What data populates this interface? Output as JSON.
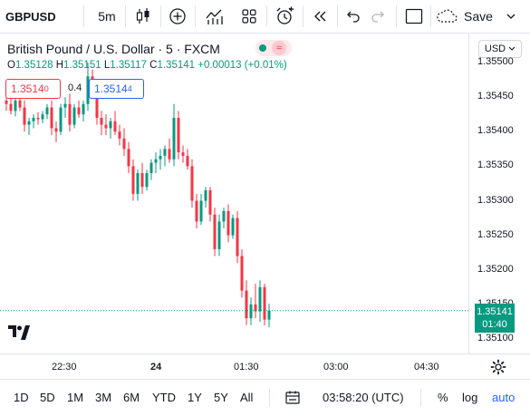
{
  "toolbar": {
    "symbol": "GBPUSD",
    "interval": "5m",
    "save_label": "Save",
    "icons": [
      "candles-icon",
      "plus-circle-icon",
      "indicators-icon",
      "layout-icon",
      "alert-icon",
      "replay-icon",
      "undo-icon",
      "redo-icon",
      "fullscreen-icon",
      "cloud-save-icon",
      "chevron-down-icon"
    ]
  },
  "legend": {
    "title": "British Pound / U.S. Dollar · 5 · FXCM",
    "o_label": "O",
    "o_value": "1.35128",
    "h_label": "H",
    "h_value": "1.35151",
    "l_label": "L",
    "l_value": "1.35117",
    "c_label": "C",
    "c_value": "1.35141",
    "change": "+0.00013 (+0.01%)",
    "sell_price": "1.3514",
    "sell_pip": "0",
    "spread": "0.4",
    "buy_price": "1.3514",
    "buy_pip": "4"
  },
  "price_axis": {
    "currency": "USD",
    "labels": [
      "1.35500",
      "1.35450",
      "1.35400",
      "1.35350",
      "1.35300",
      "1.35250",
      "1.35200",
      "1.35150",
      "1.35100"
    ],
    "last_price": "1.35141",
    "countdown": "01:40"
  },
  "time_axis": {
    "labels": [
      "22:30",
      "24",
      "01:30",
      "03:00",
      "04:30"
    ]
  },
  "bottombar": {
    "ranges": [
      "1D",
      "5D",
      "1M",
      "3M",
      "6M",
      "YTD",
      "1Y",
      "5Y",
      "All"
    ],
    "clock": "03:58:20 (UTC)",
    "percent": "%",
    "log": "log",
    "auto": "auto"
  },
  "colors": {
    "up": "#089981",
    "down": "#f23645",
    "accent": "#2962ff"
  },
  "chart_data": {
    "type": "candlestick",
    "symbol": "GBPUSD",
    "interval": "5m",
    "ylim": [
      1.3508,
      1.3552
    ],
    "candles": [
      [
        1.35445,
        1.35455,
        1.3543,
        1.3544
      ],
      [
        1.3544,
        1.3545,
        1.35425,
        1.3543
      ],
      [
        1.3543,
        1.35448,
        1.35422,
        1.35445
      ],
      [
        1.35445,
        1.3546,
        1.3543,
        1.35435
      ],
      [
        1.35435,
        1.35445,
        1.354,
        1.3541
      ],
      [
        1.3541,
        1.3542,
        1.35395,
        1.35415
      ],
      [
        1.35415,
        1.35425,
        1.35405,
        1.3542
      ],
      [
        1.3542,
        1.35428,
        1.3541,
        1.35418
      ],
      [
        1.35418,
        1.3543,
        1.35412,
        1.35425
      ],
      [
        1.35425,
        1.3544,
        1.35418,
        1.35435
      ],
      [
        1.35435,
        1.35445,
        1.35395,
        1.35405
      ],
      [
        1.35405,
        1.35415,
        1.35385,
        1.354
      ],
      [
        1.354,
        1.3544,
        1.35395,
        1.35435
      ],
      [
        1.35435,
        1.3545,
        1.3542,
        1.3544
      ],
      [
        1.3544,
        1.35455,
        1.354,
        1.3541
      ],
      [
        1.3541,
        1.3544,
        1.35405,
        1.35435
      ],
      [
        1.35435,
        1.35445,
        1.3542,
        1.35425
      ],
      [
        1.35425,
        1.35445,
        1.35415,
        1.3544
      ],
      [
        1.3544,
        1.355,
        1.3543,
        1.3548
      ],
      [
        1.3548,
        1.3549,
        1.35455,
        1.35465
      ],
      [
        1.35465,
        1.3547,
        1.3541,
        1.3542
      ],
      [
        1.3542,
        1.3543,
        1.35395,
        1.3541
      ],
      [
        1.3541,
        1.35425,
        1.35395,
        1.35405
      ],
      [
        1.35405,
        1.3542,
        1.3539,
        1.35415
      ],
      [
        1.35415,
        1.3543,
        1.35395,
        1.354
      ],
      [
        1.354,
        1.3541,
        1.3538,
        1.3539
      ],
      [
        1.3539,
        1.35405,
        1.35365,
        1.35375
      ],
      [
        1.35375,
        1.35385,
        1.3534,
        1.3535
      ],
      [
        1.3535,
        1.3536,
        1.353,
        1.3531
      ],
      [
        1.3531,
        1.35345,
        1.353,
        1.3534
      ],
      [
        1.3534,
        1.35355,
        1.3531,
        1.3532
      ],
      [
        1.3532,
        1.35345,
        1.35315,
        1.3534
      ],
      [
        1.3534,
        1.3536,
        1.3533,
        1.35355
      ],
      [
        1.35355,
        1.3537,
        1.3534,
        1.3536
      ],
      [
        1.3536,
        1.35375,
        1.35345,
        1.35365
      ],
      [
        1.35365,
        1.3538,
        1.3535,
        1.35375
      ],
      [
        1.35375,
        1.3539,
        1.35355,
        1.3536
      ],
      [
        1.3536,
        1.3544,
        1.3535,
        1.3542
      ],
      [
        1.3542,
        1.3543,
        1.3536,
        1.3537
      ],
      [
        1.3537,
        1.3538,
        1.35355,
        1.35365
      ],
      [
        1.35365,
        1.35375,
        1.35345,
        1.3535
      ],
      [
        1.3535,
        1.3536,
        1.3529,
        1.353
      ],
      [
        1.353,
        1.3531,
        1.3526,
        1.3527
      ],
      [
        1.3527,
        1.3531,
        1.35265,
        1.353
      ],
      [
        1.353,
        1.3532,
        1.3529,
        1.35315
      ],
      [
        1.35315,
        1.3532,
        1.3527,
        1.3528
      ],
      [
        1.3528,
        1.3529,
        1.3522,
        1.3523
      ],
      [
        1.3523,
        1.3528,
        1.3522,
        1.3527
      ],
      [
        1.3527,
        1.3529,
        1.3526,
        1.35285
      ],
      [
        1.35285,
        1.35295,
        1.3524,
        1.3525
      ],
      [
        1.3525,
        1.3528,
        1.35245,
        1.35275
      ],
      [
        1.35275,
        1.35285,
        1.3521,
        1.3522
      ],
      [
        1.3522,
        1.3523,
        1.3516,
        1.3517
      ],
      [
        1.3517,
        1.35185,
        1.3512,
        1.3513
      ],
      [
        1.3513,
        1.3516,
        1.3512,
        1.3515
      ],
      [
        1.3515,
        1.3518,
        1.3513,
        1.3514
      ],
      [
        1.3514,
        1.35185,
        1.35125,
        1.35175
      ],
      [
        1.35175,
        1.3518,
        1.3512,
        1.35128
      ],
      [
        1.35128,
        1.35151,
        1.35117,
        1.35141
      ]
    ]
  }
}
